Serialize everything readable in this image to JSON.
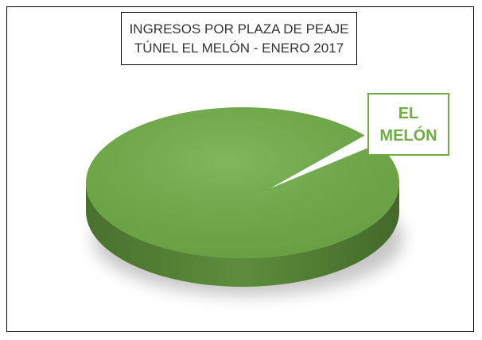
{
  "chart_data": {
    "type": "pie",
    "title": [
      "INGRESOS POR PLAZA DE PEAJE",
      "TÚNEL EL MELÓN - ENERO 2017"
    ],
    "categories": [
      "EL MELÓN"
    ],
    "values": [
      100
    ],
    "color": "#70ad47"
  }
}
